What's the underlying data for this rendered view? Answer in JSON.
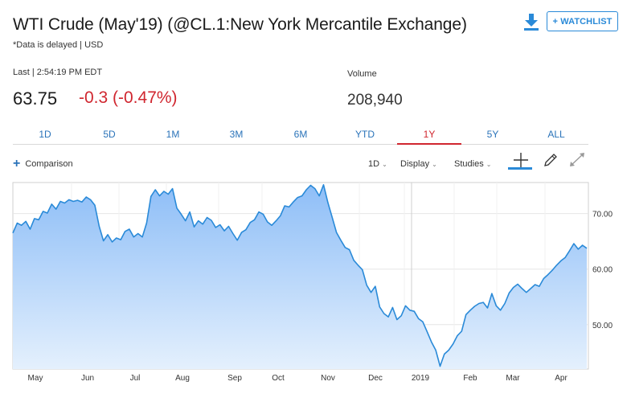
{
  "header": {
    "title": "WTI Crude (May'19) (@CL.1:New York Mercantile Exchange)",
    "subtitle": "*Data is delayed | USD",
    "watchlist_label": "+ WATCHLIST",
    "download_icon": "download-icon"
  },
  "quote": {
    "last_label": "Last | 2:54:19 PM EDT",
    "last_value": "63.75",
    "change": "-0.3 (-0.47%)",
    "change_color": "#d0262f",
    "volume_label": "Volume",
    "volume_value": "208,940"
  },
  "range_tabs": [
    {
      "label": "1D",
      "active": false
    },
    {
      "label": "5D",
      "active": false
    },
    {
      "label": "1M",
      "active": false
    },
    {
      "label": "3M",
      "active": false
    },
    {
      "label": "6M",
      "active": false
    },
    {
      "label": "YTD",
      "active": false
    },
    {
      "label": "1Y",
      "active": true
    },
    {
      "label": "5Y",
      "active": false
    },
    {
      "label": "ALL",
      "active": false
    }
  ],
  "toolbar": {
    "comparison_label": "Comparison",
    "interval_label": "1D",
    "display_label": "Display",
    "studies_label": "Studies",
    "icons": [
      "crosshair-icon",
      "pencil-icon",
      "expand-icon"
    ]
  },
  "chart_data": {
    "type": "area",
    "x_labels": [
      "May",
      "Jun",
      "Jul",
      "Aug",
      "Sep",
      "Oct",
      "Nov",
      "Dec",
      "2019",
      "Feb",
      "Mar",
      "Apr"
    ],
    "y_ticks": [
      50,
      60,
      70
    ],
    "y_tick_labels": [
      "50.00",
      "60.00",
      "70.00"
    ],
    "ylim": [
      42,
      75.6
    ],
    "line_color": "#2a8ad8",
    "fill_color": "#9ec8f7",
    "grid": true,
    "values": [
      66.5,
      68.3,
      67.9,
      68.6,
      67.2,
      69.1,
      68.9,
      70.4,
      70.1,
      71.7,
      70.8,
      72.2,
      71.9,
      72.5,
      72.2,
      72.4,
      72.1,
      73.0,
      72.5,
      71.5,
      67.7,
      65.1,
      66.2,
      64.9,
      65.6,
      65.3,
      66.8,
      67.2,
      65.8,
      66.4,
      65.8,
      68.3,
      73.1,
      74.3,
      73.2,
      74.0,
      73.5,
      74.5,
      71.0,
      69.9,
      68.7,
      70.3,
      67.6,
      68.7,
      68.1,
      69.3,
      68.8,
      67.5,
      68.0,
      66.9,
      67.7,
      66.4,
      65.2,
      66.6,
      67.1,
      68.4,
      68.9,
      70.3,
      69.9,
      68.5,
      67.9,
      68.7,
      69.6,
      71.4,
      71.2,
      72.1,
      72.9,
      73.2,
      74.3,
      75.1,
      74.5,
      73.2,
      75.2,
      72.0,
      69.3,
      66.6,
      65.2,
      63.9,
      63.5,
      61.6,
      60.7,
      59.9,
      57.1,
      55.8,
      56.9,
      53.2,
      52.0,
      51.4,
      53.1,
      50.9,
      51.6,
      53.4,
      52.6,
      52.4,
      51.1,
      50.5,
      48.7,
      46.9,
      45.4,
      42.5,
      44.7,
      45.4,
      46.5,
      48.0,
      48.8,
      51.8,
      52.6,
      53.3,
      53.8,
      54.0,
      53.0,
      55.6,
      53.4,
      52.6,
      53.8,
      55.7,
      56.7,
      57.3,
      56.5,
      55.8,
      56.5,
      57.2,
      56.9,
      58.3,
      59.0,
      59.8,
      60.7,
      61.5,
      62.1,
      63.3,
      64.6,
      63.6,
      64.3,
      63.75
    ]
  }
}
